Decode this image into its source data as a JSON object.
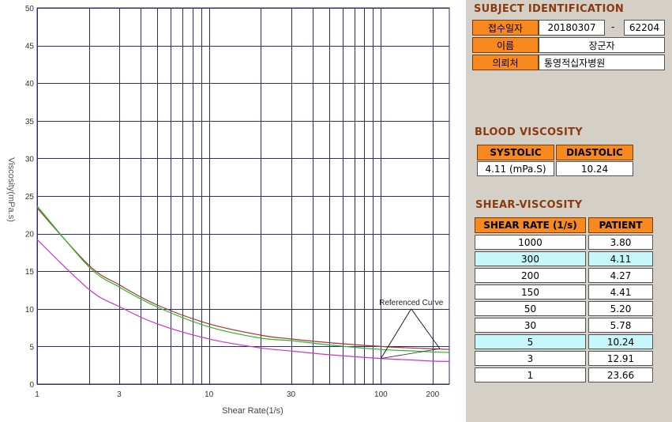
{
  "subject": {
    "title": "SUBJECT IDENTIFICATION",
    "fields": [
      {
        "label": "접수일자",
        "value": "20180307",
        "value2": "62204"
      },
      {
        "label": "이름",
        "value": "장군자"
      },
      {
        "label": "의뢰처",
        "value": "통영적십자병원"
      }
    ],
    "separator": "-"
  },
  "blood": {
    "title": "BLOOD VISCOSITY",
    "headers": [
      "SYSTOLIC",
      "DIASTOLIC"
    ],
    "values": [
      "4.11 (mPa.S)",
      "10.24"
    ]
  },
  "shear": {
    "title": "SHEAR-VISCOSITY",
    "headers": [
      "SHEAR RATE (1/s)",
      "PATIENT"
    ],
    "rows": [
      {
        "rate": "1000",
        "patient": "3.80",
        "highlight": false
      },
      {
        "rate": "300",
        "patient": "4.11",
        "highlight": true
      },
      {
        "rate": "200",
        "patient": "4.27",
        "highlight": false
      },
      {
        "rate": "150",
        "patient": "4.41",
        "highlight": false
      },
      {
        "rate": "50",
        "patient": "5.20",
        "highlight": false
      },
      {
        "rate": "30",
        "patient": "5.78",
        "highlight": false
      },
      {
        "rate": "5",
        "patient": "10.24",
        "highlight": true
      },
      {
        "rate": "3",
        "patient": "12.91",
        "highlight": false
      },
      {
        "rate": "1",
        "patient": "23.66",
        "highlight": false
      }
    ],
    "highlight_color": "#c6f7fa"
  },
  "chart_data": {
    "type": "line",
    "xlabel": "Shear Rate(1/s)",
    "ylabel": "Viscosity(mPa.s)",
    "xscale": "log",
    "xlim": [
      1,
      250
    ],
    "ylim": [
      0,
      50
    ],
    "x_tick_labels": [
      "1",
      "3",
      "10",
      "30",
      "100",
      "200"
    ],
    "x_tick_values": [
      1,
      3,
      10,
      30,
      100,
      200
    ],
    "y_tick_labels": [
      "0",
      "5",
      "10",
      "15",
      "20",
      "25",
      "30",
      "35",
      "40",
      "45",
      "50"
    ],
    "y_tick_values": [
      0,
      5,
      10,
      15,
      20,
      25,
      30,
      35,
      40,
      45,
      50
    ],
    "grid": true,
    "annotation": "Referenced Curve",
    "series": [
      {
        "color": "#b03030",
        "x": [
          1,
          2,
          3,
          5,
          10,
          20,
          30,
          50,
          100,
          150,
          200,
          250
        ],
        "y": [
          23.4,
          15.8,
          13.2,
          10.5,
          8.0,
          6.5,
          6.0,
          5.5,
          5.0,
          4.8,
          4.7,
          4.6
        ]
      },
      {
        "color": "#22bb22",
        "x": [
          1,
          2,
          3,
          5,
          10,
          20,
          30,
          50,
          100,
          150,
          200,
          250
        ],
        "y": [
          23.66,
          15.6,
          12.91,
          10.24,
          7.6,
          6.1,
          5.78,
          5.2,
          4.6,
          4.41,
          4.27,
          4.2
        ]
      },
      {
        "color": "#cc33cc",
        "x": [
          1,
          2,
          3,
          5,
          10,
          20,
          30,
          50,
          100,
          150,
          200,
          250
        ],
        "y": [
          19.2,
          12.6,
          10.3,
          8.0,
          6.0,
          4.8,
          4.4,
          3.9,
          3.4,
          3.2,
          3.05,
          3.0
        ]
      }
    ]
  }
}
